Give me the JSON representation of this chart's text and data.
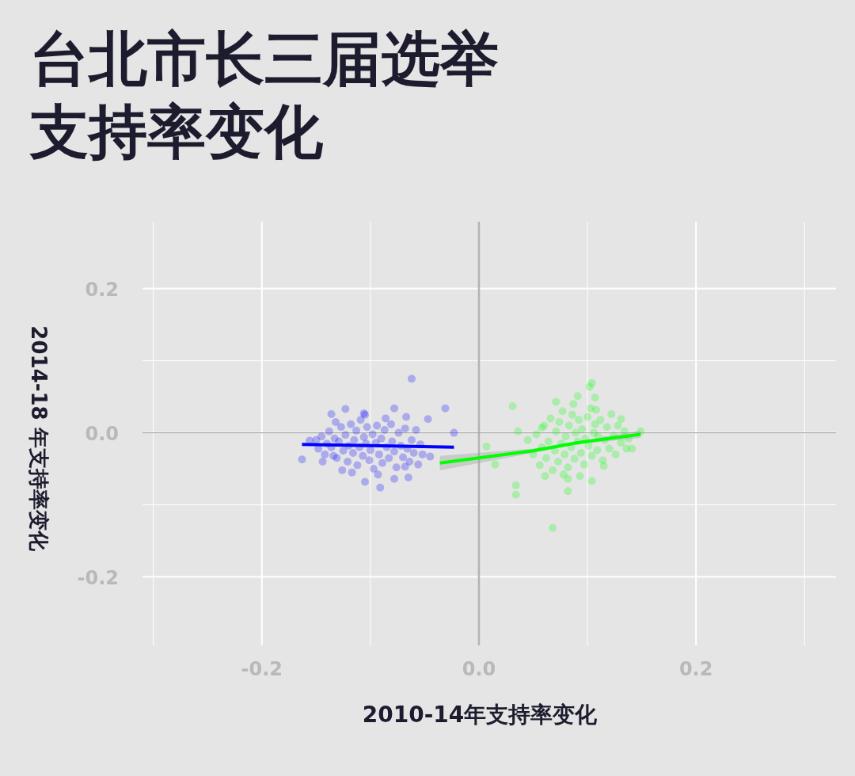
{
  "chart_data": {
    "type": "scatter",
    "title": "台北市长三届选举支持率变化",
    "xlabel": "2010-14年支持率变化",
    "ylabel": "2014-18 年支持率变化",
    "xlim": [
      -0.31,
      0.329
    ],
    "ylim": [
      -0.295,
      0.293
    ],
    "xticks": [
      {
        "value": -0.3,
        "label": null
      },
      -0.2,
      {
        "value": -0.1,
        "label": null
      },
      {
        "value": 0,
        "label": "0.0"
      },
      {
        "value": 0.1,
        "label": null
      },
      0.2,
      {
        "value": 0.3,
        "label": null
      }
    ],
    "yticks": [
      -0.2,
      {
        "value": -0.1,
        "label": null
      },
      {
        "value": 0,
        "label": "0.0"
      },
      {
        "value": 0.1,
        "label": null
      },
      0.2
    ],
    "grid": true,
    "ref_lines": [
      {
        "axis": "x",
        "value": 0,
        "color": "#b3b3b3"
      },
      {
        "axis": "y",
        "value": 0,
        "color": "#a8a8a8"
      }
    ],
    "series": [
      {
        "marker": "circle",
        "color": "#0000ff",
        "x": [
          -0.15,
          -0.148,
          -0.145,
          -0.142,
          -0.14,
          -0.138,
          -0.136,
          -0.133,
          -0.131,
          -0.129,
          -0.127,
          -0.125,
          -0.123,
          -0.121,
          -0.12,
          -0.118,
          -0.116,
          -0.115,
          -0.113,
          -0.112,
          -0.11,
          -0.109,
          -0.107,
          -0.106,
          -0.104,
          -0.103,
          -0.101,
          -0.1,
          -0.098,
          -0.097,
          -0.095,
          -0.094,
          -0.092,
          -0.09,
          -0.089,
          -0.087,
          -0.085,
          -0.083,
          -0.081,
          -0.08,
          -0.078,
          -0.076,
          -0.074,
          -0.072,
          -0.07,
          -0.068,
          -0.066,
          -0.064,
          -0.062,
          -0.06,
          -0.058,
          -0.056,
          -0.054,
          -0.052,
          -0.132,
          -0.117,
          -0.105,
          -0.093,
          -0.086,
          -0.144,
          -0.062,
          -0.031,
          -0.023,
          -0.123,
          -0.136,
          -0.163,
          -0.091,
          -0.105,
          -0.065,
          -0.078,
          -0.078,
          -0.067,
          -0.047,
          -0.126,
          -0.156,
          -0.068,
          -0.045,
          -0.134,
          -0.106
        ],
        "values": [
          -0.01,
          -0.022,
          -0.005,
          -0.03,
          -0.015,
          0.002,
          -0.02,
          -0.008,
          -0.035,
          -0.012,
          0.008,
          -0.025,
          -0.003,
          -0.04,
          -0.018,
          0.012,
          -0.028,
          -0.01,
          0.003,
          -0.045,
          -0.02,
          0.018,
          -0.032,
          -0.006,
          -0.015,
          0.008,
          -0.038,
          -0.024,
          -0.002,
          -0.05,
          -0.014,
          0.01,
          -0.03,
          -0.008,
          -0.042,
          0.004,
          -0.02,
          -0.035,
          0.012,
          -0.012,
          -0.026,
          -0.048,
          0.0,
          -0.018,
          -0.034,
          0.006,
          -0.022,
          -0.04,
          -0.01,
          -0.028,
          0.004,
          -0.044,
          -0.016,
          -0.03,
          0.015,
          -0.055,
          0.025,
          -0.058,
          0.02,
          -0.04,
          0.075,
          0.034,
          0.0,
          0.033,
          0.026,
          -0.037,
          -0.076,
          -0.068,
          -0.062,
          -0.064,
          0.034,
          0.022,
          0.019,
          -0.052,
          -0.011,
          -0.047,
          -0.033,
          -0.032,
          0.027
        ]
      },
      {
        "marker": "circle",
        "color": "#00ff00",
        "x": [
          0.045,
          0.05,
          0.053,
          0.056,
          0.058,
          0.06,
          0.062,
          0.064,
          0.066,
          0.068,
          0.07,
          0.071,
          0.073,
          0.074,
          0.076,
          0.077,
          0.079,
          0.08,
          0.082,
          0.083,
          0.085,
          0.086,
          0.088,
          0.089,
          0.091,
          0.092,
          0.094,
          0.095,
          0.097,
          0.098,
          0.1,
          0.101,
          0.103,
          0.104,
          0.106,
          0.107,
          0.109,
          0.11,
          0.112,
          0.114,
          0.116,
          0.118,
          0.12,
          0.122,
          0.124,
          0.126,
          0.128,
          0.131,
          0.134,
          0.138,
          0.078,
          0.087,
          0.093,
          0.108,
          0.061,
          0.115,
          0.068,
          0.102,
          0.104,
          0.031,
          0.071,
          0.091,
          0.107,
          0.149,
          0.141,
          0.007,
          0.015,
          0.034,
          0.034,
          0.082,
          0.082,
          0.036,
          0.058,
          0.104,
          0.131,
          0.136
        ],
        "values": [
          -0.01,
          -0.03,
          -0.002,
          -0.045,
          -0.02,
          0.01,
          -0.035,
          -0.012,
          0.02,
          -0.052,
          -0.025,
          0.002,
          -0.04,
          0.015,
          -0.015,
          0.03,
          -0.03,
          -0.005,
          -0.048,
          0.01,
          -0.02,
          0.025,
          -0.036,
          0.0,
          -0.012,
          0.018,
          -0.028,
          0.005,
          -0.044,
          -0.008,
          0.022,
          -0.018,
          0.034,
          -0.032,
          0.0,
          0.012,
          -0.024,
          -0.005,
          0.018,
          -0.038,
          -0.01,
          0.008,
          -0.022,
          0.026,
          -0.004,
          -0.03,
          0.01,
          -0.014,
          0.002,
          -0.008,
          -0.058,
          0.04,
          -0.06,
          0.032,
          -0.06,
          -0.046,
          -0.132,
          0.064,
          0.069,
          0.037,
          0.043,
          0.051,
          0.049,
          0.002,
          -0.022,
          -0.019,
          -0.044,
          -0.073,
          -0.086,
          -0.081,
          -0.064,
          0.002,
          0.007,
          -0.067,
          0.019,
          -0.022
        ]
      },
      {
        "type": "line",
        "marker": "none",
        "color": "#0000ff",
        "x": [
          -0.163,
          -0.023
        ],
        "values": [
          -0.016,
          -0.02
        ]
      },
      {
        "type": "line",
        "marker": "none",
        "color": "#00ff00",
        "x": [
          -0.036,
          0.05,
          0.09,
          0.149
        ],
        "values": [
          -0.042,
          -0.025,
          -0.014,
          -0.002
        ],
        "lower": [
          -0.052,
          -0.028,
          -0.016,
          -0.007
        ],
        "upper": [
          -0.032,
          -0.022,
          -0.012,
          0.003
        ]
      }
    ]
  }
}
